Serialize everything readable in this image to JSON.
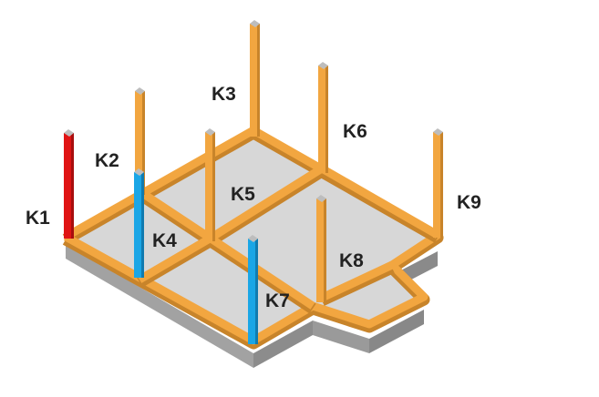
{
  "columns": [
    {
      "id": "K1",
      "label": "K1",
      "color": "#e01414"
    },
    {
      "id": "K2",
      "label": "K2",
      "color": "#f0a030"
    },
    {
      "id": "K3",
      "label": "K3",
      "color": "#f0a030"
    },
    {
      "id": "K4",
      "label": "K4",
      "color": "#1aa6e6"
    },
    {
      "id": "K5",
      "label": "K5",
      "color": "#f0a030"
    },
    {
      "id": "K6",
      "label": "K6",
      "color": "#f0a030"
    },
    {
      "id": "K7",
      "label": "K7",
      "color": "#1aa6e6"
    },
    {
      "id": "K8",
      "label": "K8",
      "color": "#f0a030"
    },
    {
      "id": "K9",
      "label": "K9",
      "color": "#f0a030"
    }
  ],
  "colors": {
    "beam_top": "#f2a640",
    "beam_side": "#c8842a",
    "floor": "#d6d6d6",
    "slab_side": "#a0a0a0",
    "slab_front": "#8a8a8a",
    "post_cap": "#bdbdbd"
  }
}
